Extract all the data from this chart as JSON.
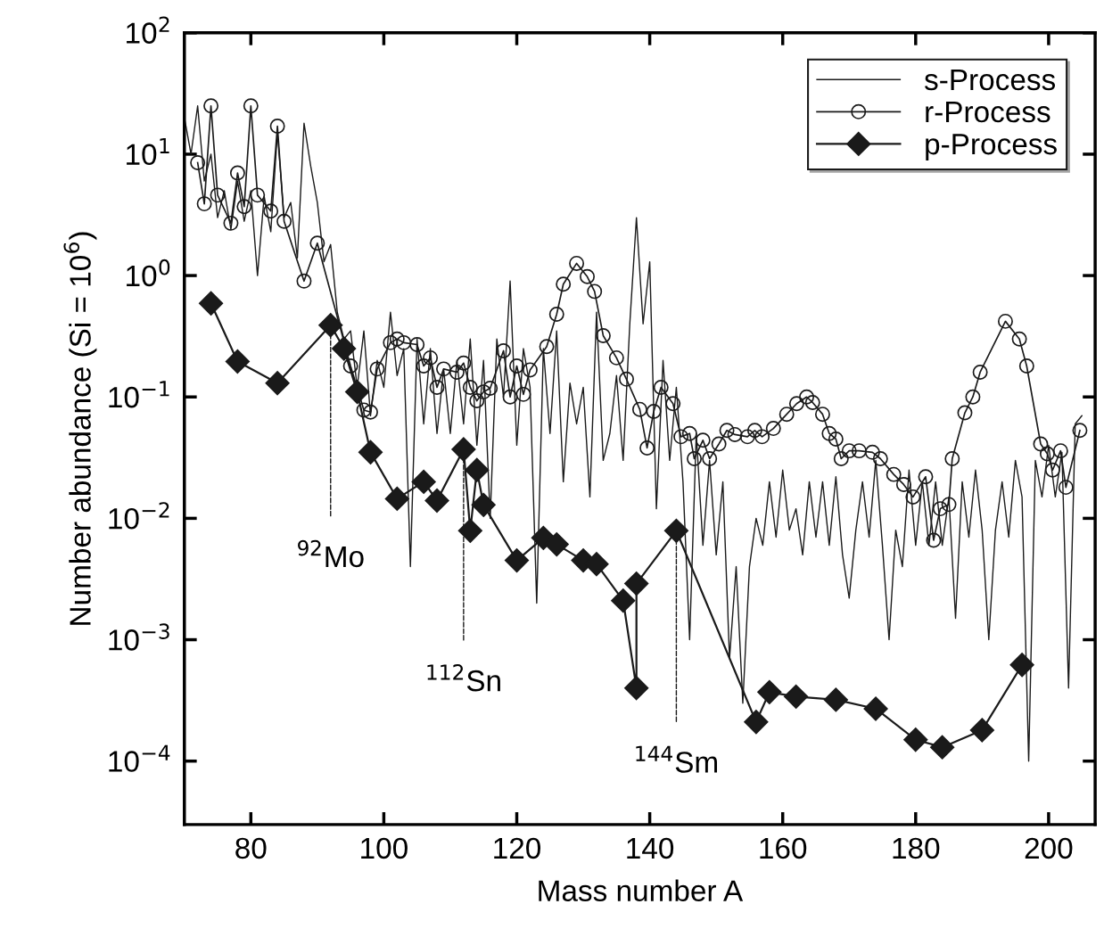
{
  "chart_data": {
    "type": "line",
    "xlabel": "Mass number A",
    "ylabel": "Number abundance (Si = 10$^{6}$)",
    "log": "y",
    "xlim": [
      70,
      207
    ],
    "xticks": [
      80,
      100,
      120,
      140,
      160,
      180,
      200
    ],
    "ylim": [
      3e-05,
      100
    ],
    "yticks": [
      {
        "value": 100,
        "label": "10$^{2}$"
      },
      {
        "value": 10,
        "label": "10$^{1}$"
      },
      {
        "value": 1,
        "label": "10$^{0}$"
      },
      {
        "value": 0.1,
        "label": "10$^{−1}$"
      },
      {
        "value": 0.01,
        "label": "10$^{−2}$"
      },
      {
        "value": 0.001,
        "label": "10$^{−3}$"
      },
      {
        "value": 0.0001,
        "label": "10$^{−4}$"
      }
    ],
    "grid": false,
    "legend": "top right",
    "series": [
      {
        "name": "s-Process",
        "color": "#1a1a1a",
        "marker": "none",
        "x": [
          70,
          71,
          72,
          73,
          74,
          75,
          76,
          77,
          78,
          79,
          80,
          81,
          82,
          83,
          84,
          85,
          86,
          87,
          88,
          89,
          90,
          91,
          92,
          93,
          94,
          95,
          96,
          97,
          98,
          99,
          100,
          101,
          102,
          103,
          104,
          105,
          106,
          107,
          108,
          109,
          110,
          111,
          112,
          113,
          114,
          115,
          116,
          117,
          118,
          119,
          120,
          121,
          122,
          123,
          124,
          125,
          126,
          127,
          128,
          129,
          130,
          131,
          132,
          133,
          134,
          135,
          136,
          137,
          138,
          139,
          140,
          141,
          142,
          143,
          144,
          145,
          146,
          147,
          148,
          149,
          150,
          151,
          152,
          153,
          154,
          155,
          156,
          157,
          158,
          159,
          160,
          161,
          162,
          163,
          164,
          165,
          166,
          167,
          168,
          169,
          170,
          171,
          172,
          173,
          174,
          175,
          176,
          177,
          178,
          179,
          180,
          181,
          182,
          183,
          184,
          185,
          186,
          187,
          188,
          189,
          190,
          191,
          192,
          193,
          194,
          195,
          196,
          197,
          198,
          199,
          200,
          201,
          202,
          203,
          204,
          205
        ],
        "values": [
          20,
          10,
          25,
          6,
          10,
          3,
          5,
          2.4,
          6,
          2.8,
          5,
          1.0,
          4.5,
          2.3,
          15,
          3,
          4,
          1.4,
          18,
          8,
          4,
          1.3,
          1.8,
          0.5,
          0.3,
          0.35,
          0.12,
          0.35,
          0.07,
          0.2,
          0.12,
          0.5,
          0.15,
          0.25,
          0.004,
          0.3,
          0.06,
          0.25,
          0.05,
          0.17,
          0.05,
          0.2,
          0.06,
          0.3,
          0.04,
          0.2,
          0.01,
          0.3,
          0.1,
          0.9,
          0.04,
          0.25,
          0.12,
          0.002,
          0.25,
          0.05,
          0.35,
          0.02,
          0.13,
          0.06,
          0.12,
          0.015,
          0.5,
          0.03,
          0.05,
          0.15,
          0.03,
          0.4,
          3.0,
          0.4,
          1.3,
          0.012,
          0.2,
          0.03,
          0.12,
          0.02,
          0.001,
          0.05,
          0.006,
          0.03,
          0.005,
          0.02,
          0.0007,
          0.004,
          0.0003,
          0.004,
          0.01,
          0.006,
          0.02,
          0.007,
          0.025,
          0.008,
          0.012,
          0.005,
          0.02,
          0.007,
          0.02,
          0.006,
          0.022,
          0.005,
          0.0022,
          0.008,
          0.02,
          0.007,
          0.03,
          0.006,
          0.001,
          0.008,
          0.004,
          0.025,
          0.006,
          0.02,
          0.006,
          0.02,
          0.006,
          0.015,
          0.0015,
          0.02,
          0.007,
          0.025,
          0.008,
          0.001,
          0.008,
          0.02,
          0.007,
          0.03,
          0.015,
          0.0001,
          0.03,
          0.015,
          0.04,
          0.015,
          0.035,
          0.0004,
          0.06,
          0.07
        ]
      },
      {
        "name": "r-Process",
        "color": "#1a1a1a",
        "marker": "circle",
        "x": [
          72,
          73,
          74,
          75,
          77,
          78,
          79,
          80,
          81,
          83,
          84,
          85,
          88,
          90,
          95,
          97,
          98,
          99,
          101,
          102,
          103,
          105,
          106,
          107,
          108,
          109,
          111,
          112,
          113,
          114,
          115,
          116,
          118,
          119,
          120,
          121,
          122,
          124.5,
          126,
          127,
          129,
          130.6,
          131.7,
          133,
          135,
          136.5,
          138.5,
          139.6,
          140.6,
          141.7,
          143.5,
          144.7,
          146,
          146.7,
          148,
          149,
          150.4,
          151.6,
          152.8,
          154.7,
          155.8,
          156.9,
          158.6,
          160.6,
          162.1,
          163.6,
          164.5,
          166,
          167,
          168,
          168.8,
          170,
          171.5,
          173.5,
          174.7,
          176.7,
          178.2,
          179.6,
          181.5,
          182.7,
          183.7,
          185,
          185.5,
          187.4,
          188.6,
          189.7,
          193.5,
          195.6,
          196.7,
          198.8,
          199.8,
          200.6,
          201.8,
          202.6,
          204.7
        ],
        "values": [
          8.5,
          3.9,
          25,
          4.6,
          2.7,
          7,
          3.7,
          25,
          4.6,
          3.4,
          17,
          2.8,
          0.9,
          1.85,
          0.18,
          0.078,
          0.075,
          0.17,
          0.28,
          0.3,
          0.28,
          0.27,
          0.18,
          0.21,
          0.12,
          0.17,
          0.16,
          0.19,
          0.12,
          0.093,
          0.11,
          0.118,
          0.24,
          0.1,
          0.18,
          0.105,
          0.167,
          0.26,
          0.48,
          0.85,
          1.26,
          0.98,
          0.74,
          0.32,
          0.21,
          0.14,
          0.079,
          0.038,
          0.076,
          0.12,
          0.088,
          0.047,
          0.05,
          0.031,
          0.044,
          0.031,
          0.041,
          0.053,
          0.049,
          0.047,
          0.053,
          0.047,
          0.055,
          0.072,
          0.088,
          0.1,
          0.09,
          0.072,
          0.05,
          0.045,
          0.031,
          0.036,
          0.036,
          0.035,
          0.031,
          0.023,
          0.019,
          0.015,
          0.022,
          0.0066,
          0.012,
          0.013,
          0.031,
          0.074,
          0.1,
          0.16,
          0.42,
          0.3,
          0.18,
          0.041,
          0.034,
          0.025,
          0.036,
          0.018,
          0.053
        ]
      },
      {
        "name": "p-Process",
        "color": "#1a1a1a",
        "marker": "diamond",
        "x": [
          74,
          78,
          84,
          92,
          94,
          96,
          98,
          102,
          106,
          108,
          112,
          113,
          114,
          115,
          120,
          124,
          126,
          130,
          132,
          136,
          138,
          138,
          144,
          156,
          158,
          162,
          168,
          174,
          180,
          184,
          190,
          196
        ],
        "values": [
          0.59,
          0.196,
          0.13,
          0.39,
          0.25,
          0.11,
          0.035,
          0.0145,
          0.02,
          0.014,
          0.037,
          0.0079,
          0.025,
          0.0129,
          0.0045,
          0.0069,
          0.0061,
          0.0045,
          0.0042,
          0.0021,
          0.0004,
          0.0029,
          0.0079,
          0.00021,
          0.00037,
          0.00034,
          0.00032,
          0.00027,
          0.00015,
          0.00013,
          0.00018,
          0.00062
        ]
      }
    ],
    "annotations": [
      {
        "text": "$^{92}$Mo",
        "x": 92,
        "y": 0.39
      },
      {
        "text": "$^{112}$Sn",
        "x": 112,
        "y": 0.037
      },
      {
        "text": "$^{144}$Sm",
        "x": 144,
        "y": 0.0079
      }
    ]
  }
}
